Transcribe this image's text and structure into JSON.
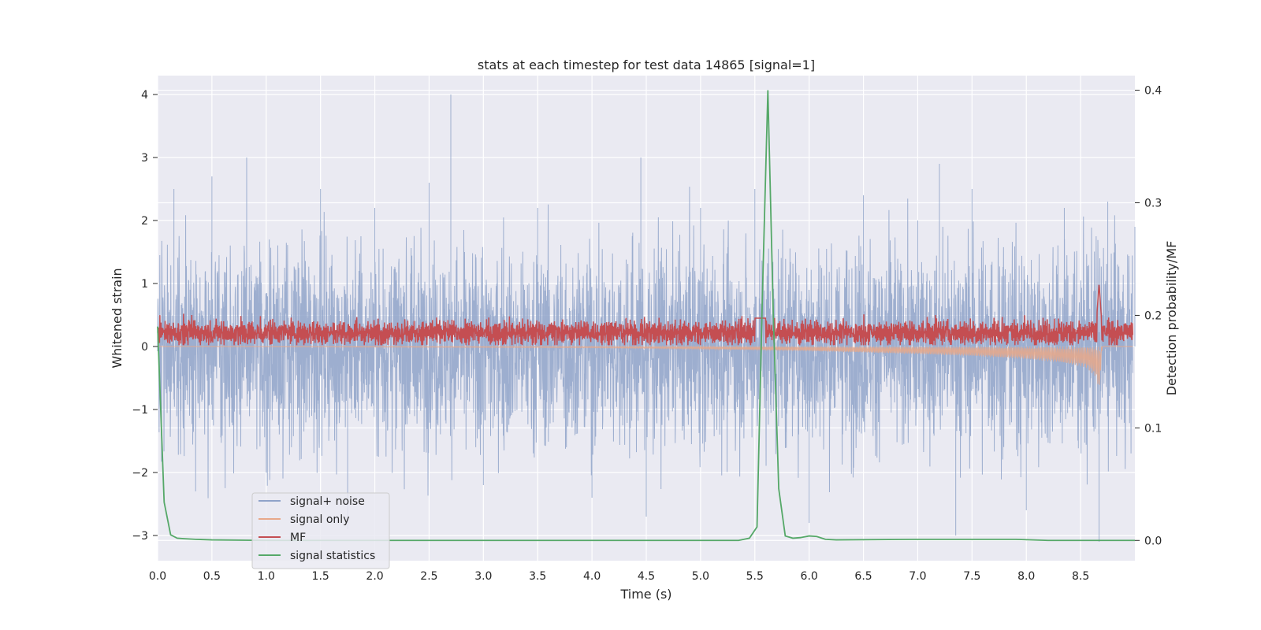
{
  "chart_data": {
    "type": "line",
    "title": "stats at each timestep for test data 14865 [signal=1]",
    "xlabel": "Time (s)",
    "ylabel": "Whitened strain",
    "y2label": "Detection probability/MF",
    "xlim": [
      0,
      9.0
    ],
    "ylim": [
      -3.4,
      4.3
    ],
    "y2lim": [
      -0.018,
      0.413
    ],
    "xticks": [
      0.0,
      0.5,
      1.0,
      1.5,
      2.0,
      2.5,
      3.0,
      3.5,
      4.0,
      4.5,
      5.0,
      5.5,
      6.0,
      6.5,
      7.0,
      7.5,
      8.0,
      8.5
    ],
    "xtick_labels": [
      "0.0",
      "0.5",
      "1.0",
      "1.5",
      "2.0",
      "2.5",
      "3.0",
      "3.5",
      "4.0",
      "4.5",
      "5.0",
      "5.5",
      "6.0",
      "6.5",
      "7.0",
      "7.5",
      "8.0",
      "8.5"
    ],
    "yticks": [
      -3,
      -2,
      -1,
      0,
      1,
      2,
      3,
      4
    ],
    "ytick_labels": [
      "−3",
      "−2",
      "−1",
      "0",
      "1",
      "2",
      "3",
      "4"
    ],
    "y2ticks": [
      0.0,
      0.1,
      0.2,
      0.3,
      0.4
    ],
    "y2tick_labels": [
      "0.0",
      "0.1",
      "0.2",
      "0.3",
      "0.4"
    ],
    "grid": true,
    "legend_position": "lower-left",
    "series": [
      {
        "name": "signal+ noise",
        "axis": "left",
        "color": "#8fa3c9",
        "description": "dense noisy strain, roughly -2.3 to 2.7 with peaks to 4.0 near t=2.7",
        "points": [
          [
            0.0,
            0.3
          ],
          [
            0.15,
            2.5
          ],
          [
            0.35,
            -2.3
          ],
          [
            0.5,
            2.7
          ],
          [
            0.82,
            3.0
          ],
          [
            1.0,
            -2.0
          ],
          [
            1.5,
            2.5
          ],
          [
            1.75,
            -2.9
          ],
          [
            2.0,
            2.2
          ],
          [
            2.5,
            2.6
          ],
          [
            2.7,
            4.0
          ],
          [
            3.0,
            -2.2
          ],
          [
            3.5,
            2.2
          ],
          [
            4.0,
            -2.4
          ],
          [
            4.45,
            3.0
          ],
          [
            4.5,
            -2.7
          ],
          [
            5.0,
            2.2
          ],
          [
            5.5,
            2.5
          ],
          [
            6.0,
            -2.8
          ],
          [
            6.5,
            2.4
          ],
          [
            7.0,
            2.0
          ],
          [
            7.2,
            2.9
          ],
          [
            7.35,
            -3.0
          ],
          [
            7.5,
            2.5
          ],
          [
            8.0,
            -2.6
          ],
          [
            8.35,
            2.2
          ],
          [
            8.67,
            -3.1
          ],
          [
            8.75,
            2.3
          ],
          [
            9.0,
            1.9
          ]
        ]
      },
      {
        "name": "signal only",
        "axis": "left",
        "color": "#e8a88a",
        "description": "chirp with growing negative envelope towards t=8.67",
        "envelope": [
          [
            0.0,
            0.0
          ],
          [
            4.0,
            -0.02
          ],
          [
            5.0,
            -0.04
          ],
          [
            6.0,
            -0.07
          ],
          [
            7.0,
            -0.12
          ],
          [
            7.5,
            -0.15
          ],
          [
            8.0,
            -0.2
          ],
          [
            8.3,
            -0.25
          ],
          [
            8.55,
            -0.33
          ],
          [
            8.65,
            -0.5
          ],
          [
            8.67,
            -0.75
          ],
          [
            8.7,
            0.0
          ],
          [
            9.0,
            0.0
          ]
        ]
      },
      {
        "name": "MF",
        "axis": "left",
        "color": "#c44e52",
        "description": "matched-filter output oscillating between ~0.02 and ~0.5 with spike to 1.0 at t=8.67",
        "points": [
          [
            0.0,
            0.1
          ],
          [
            1.0,
            0.5
          ],
          [
            2.0,
            0.1
          ],
          [
            3.0,
            0.45
          ],
          [
            4.0,
            0.1
          ],
          [
            5.0,
            0.45
          ],
          [
            5.5,
            0.55
          ],
          [
            6.0,
            0.1
          ],
          [
            7.0,
            0.4
          ],
          [
            8.0,
            0.1
          ],
          [
            8.67,
            1.0
          ],
          [
            8.7,
            0.3
          ],
          [
            9.0,
            0.1
          ]
        ]
      },
      {
        "name": "signal statistics",
        "axis": "right",
        "color": "#55a868",
        "x": [
          0.0,
          0.06,
          0.12,
          0.18,
          0.25,
          0.35,
          0.5,
          1.0,
          2.0,
          3.0,
          4.0,
          5.0,
          5.35,
          5.45,
          5.52,
          5.57,
          5.62,
          5.67,
          5.72,
          5.78,
          5.85,
          5.92,
          6.0,
          6.07,
          6.15,
          6.25,
          7.0,
          7.5,
          7.9,
          8.2,
          9.0
        ],
        "y": [
          0.19,
          0.034,
          0.005,
          0.002,
          0.0015,
          0.001,
          0.0005,
          0.0,
          0.0,
          0.0,
          0.0,
          0.0,
          0.0,
          0.002,
          0.012,
          0.22,
          0.4,
          0.2,
          0.046,
          0.004,
          0.002,
          0.0025,
          0.004,
          0.0035,
          0.001,
          0.0005,
          0.001,
          0.001,
          0.001,
          0.0,
          0.0
        ]
      }
    ]
  }
}
